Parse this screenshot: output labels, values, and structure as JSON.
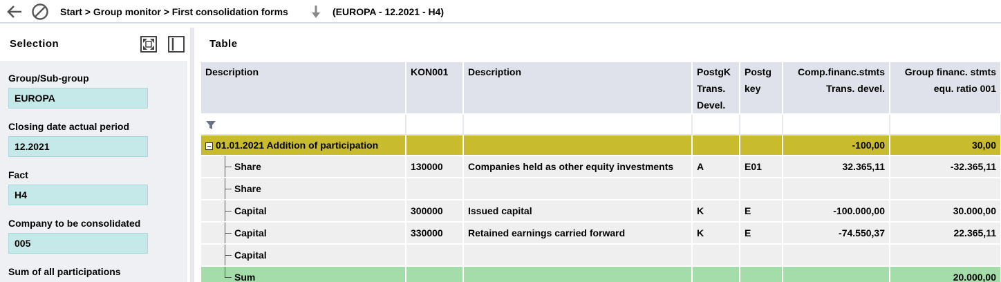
{
  "topbar": {
    "breadcrumb": "Start > Group monitor > First consolidation forms",
    "context": "(EUROPA - 12.2021 - H4)"
  },
  "selection": {
    "title": "Selection",
    "fields": [
      {
        "label": "Group/Sub-group",
        "value": "EUROPA"
      },
      {
        "label": "Closing date actual period",
        "value": "12.2021"
      },
      {
        "label": "Fact",
        "value": "H4"
      },
      {
        "label": "Company to be consolidated",
        "value": "005"
      },
      {
        "label": "Sum of all participations",
        "value": ""
      }
    ]
  },
  "table": {
    "title": "Table",
    "headers": [
      [
        "Description"
      ],
      [
        "KON001"
      ],
      [
        "Description"
      ],
      [
        "PostgK",
        "Trans.",
        "Devel."
      ],
      [
        "Postg",
        "key"
      ],
      [
        "Comp.financ.stmts",
        "Trans. devel."
      ],
      [
        "Group financ. stmts",
        "equ. ratio 001"
      ]
    ],
    "group_row": {
      "label": "01.01.2021  Addition of participation",
      "comp": "-100,00",
      "group": "30,00"
    },
    "rows": [
      {
        "desc": "Share",
        "kon": "130000",
        "desc2": "Companies held as other equity investments",
        "postgk": "A",
        "postg": "E01",
        "comp": "32.365,11",
        "group": "-32.365,11"
      },
      {
        "desc": "Share",
        "kon": "",
        "desc2": "",
        "postgk": "",
        "postg": "",
        "comp": "",
        "group": ""
      },
      {
        "desc": "Capital",
        "kon": "300000",
        "desc2": "Issued capital",
        "postgk": "K",
        "postg": "E",
        "comp": "-100.000,00",
        "group": "30.000,00"
      },
      {
        "desc": "Capital",
        "kon": "330000",
        "desc2": "Retained earnings carried forward",
        "postgk": "K",
        "postg": "E",
        "comp": "-74.550,37",
        "group": "22.365,11"
      },
      {
        "desc": "Capital",
        "kon": "",
        "desc2": "",
        "postgk": "",
        "postg": "",
        "comp": "",
        "group": ""
      }
    ],
    "sum_row": {
      "desc": "Sum",
      "comp": "",
      "group": "20.000,00"
    }
  }
}
